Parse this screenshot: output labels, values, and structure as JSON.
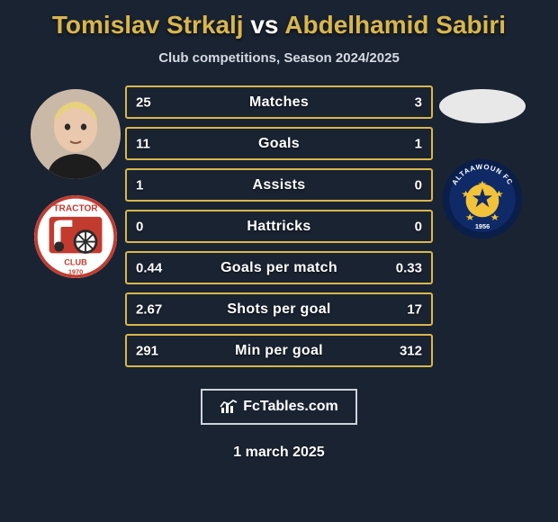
{
  "title": {
    "player1": "Tomislav Strkalj",
    "vs": "vs",
    "player2": "Abdelhamid Sabiri",
    "color_player": "#d9b64c",
    "color_vs": "#ffffff",
    "fontsize": 28
  },
  "subtitle": "Club competitions, Season 2024/2025",
  "stats": {
    "row_border_color": "#d9b64c",
    "row_bg_color": "rgba(0,0,0,0)",
    "rows": [
      {
        "label": "Matches",
        "left": "25",
        "right": "3"
      },
      {
        "label": "Goals",
        "left": "11",
        "right": "1"
      },
      {
        "label": "Assists",
        "left": "1",
        "right": "0"
      },
      {
        "label": "Hattricks",
        "left": "0",
        "right": "0"
      },
      {
        "label": "Goals per match",
        "left": "0.44",
        "right": "0.33"
      },
      {
        "label": "Shots per goal",
        "left": "2.67",
        "right": "17"
      },
      {
        "label": "Min per goal",
        "left": "291",
        "right": "312"
      }
    ]
  },
  "left": {
    "avatar_bg": "#cbb9a8",
    "hair_color": "#e7d27a",
    "skin_color": "#e9c8ad",
    "shirt_color": "#1d1d1d",
    "club": {
      "bg": "#ffffff",
      "border": "#c33a2f",
      "text_top": "TRACTOR",
      "text_bottom": "CLUB",
      "year": "1970",
      "wheel_color": "#2a2a2a"
    }
  },
  "right": {
    "oval_color": "#e8e8e8",
    "club": {
      "bg": "#0f2a66",
      "ring_color": "#0a1e4a",
      "text_top": "ALTAAWOUN FC",
      "year": "1956",
      "ball_color": "#f2c23a",
      "star_color": "#0f2a66"
    }
  },
  "brand": {
    "text": "FcTables.com",
    "border_color": "#cfd3da"
  },
  "date": "1 march 2025",
  "palette": {
    "page_bg": "#1a2332",
    "gold": "#d9b64c",
    "text": "#ffffff"
  }
}
